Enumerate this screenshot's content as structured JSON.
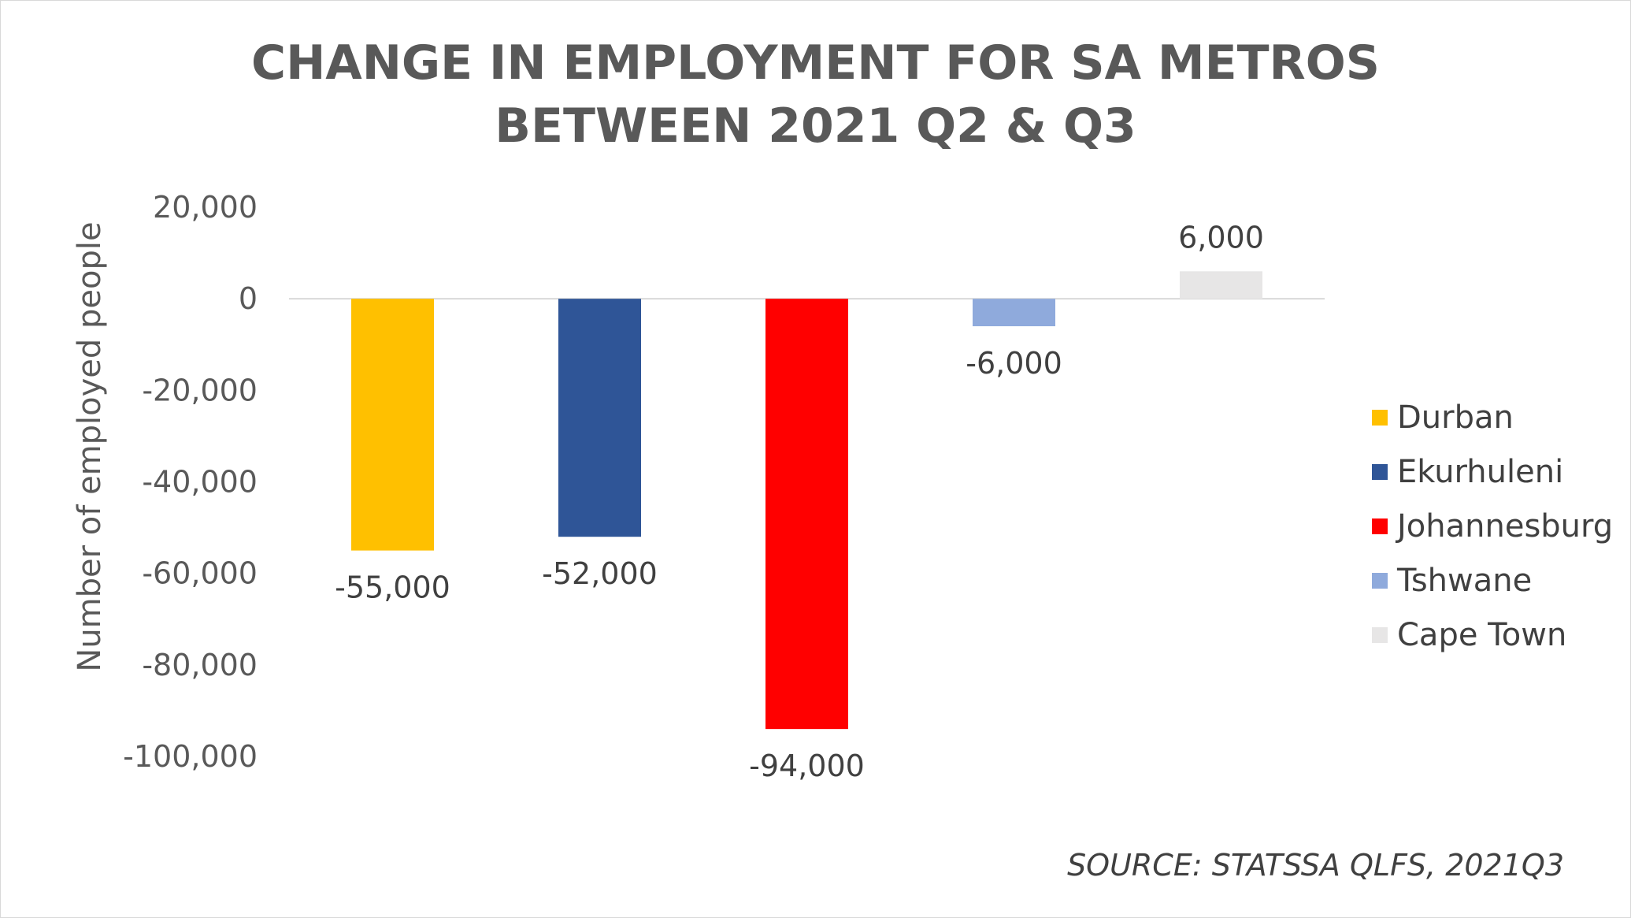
{
  "title_line1": "CHANGE IN EMPLOYMENT FOR SA METROS",
  "title_line2": "BETWEEN 2021 Q2 & Q3",
  "source": "SOURCE: STATSSA QLFS, 2021Q3",
  "chart_data": {
    "type": "bar",
    "title": "CHANGE IN EMPLOYMENT FOR SA METROS BETWEEN 2021 Q2 & Q3",
    "ylabel": "Number of employed people",
    "xlabel": "",
    "ylim": [
      -100000,
      20000
    ],
    "yticks": [
      20000,
      0,
      -20000,
      -40000,
      -60000,
      -80000,
      -100000
    ],
    "ytick_labels": [
      "20,000",
      "0",
      "-20,000",
      "-40,000",
      "-60,000",
      "-80,000",
      "-100,000"
    ],
    "categories": [
      "Durban",
      "Ekurhuleni",
      "Johannesburg",
      "Tshwane",
      "Cape Town"
    ],
    "values": [
      -55000,
      -52000,
      -94000,
      -6000,
      6000
    ],
    "value_labels": [
      "-55,000",
      "-52,000",
      "-94,000",
      "-6,000",
      "6,000"
    ],
    "colors": [
      "#FFC000",
      "#2F5597",
      "#FF0000",
      "#8FAADC",
      "#E7E6E6"
    ],
    "grid": false,
    "legend_position": "right"
  }
}
